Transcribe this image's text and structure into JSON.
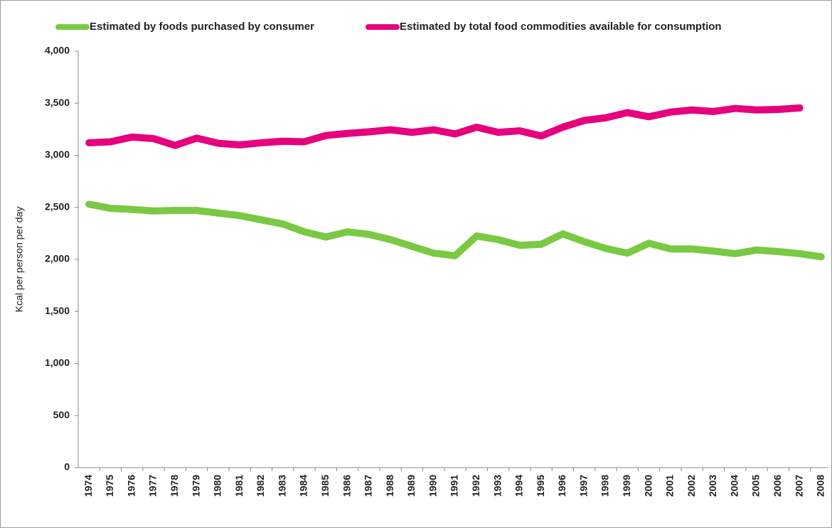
{
  "chart_data": {
    "type": "line",
    "y_label": "Kcal per person per day",
    "categories": [
      "1974",
      "1975",
      "1976",
      "1977",
      "1978",
      "1979",
      "1980",
      "1981",
      "1982",
      "1983",
      "1984",
      "1985",
      "1986",
      "1987",
      "1988",
      "1989",
      "1990",
      "1991",
      "1992",
      "1993",
      "1994",
      "1995",
      "1996",
      "1997",
      "1998",
      "1999",
      "2000",
      "2001",
      "2002",
      "2003",
      "2004",
      "2005",
      "2006",
      "2007",
      "2008"
    ],
    "series": [
      {
        "name": "Estimated by foods purchased by consumer",
        "color": "#7ac943",
        "values": [
          2530,
          2490,
          2480,
          2465,
          2470,
          2470,
          2445,
          2420,
          2380,
          2340,
          2265,
          2215,
          2265,
          2240,
          2190,
          2125,
          2060,
          2035,
          2225,
          2190,
          2135,
          2145,
          2245,
          2170,
          2105,
          2060,
          2155,
          2100,
          2100,
          2080,
          2055,
          2090,
          2075,
          2055,
          2025
        ]
      },
      {
        "name": "Estimated  by total food commodities available for consumption",
        "color": "#e6007e",
        "values": [
          3120,
          3130,
          3175,
          3160,
          3095,
          3165,
          3115,
          3100,
          3120,
          3135,
          3130,
          3190,
          3210,
          3225,
          3245,
          3220,
          3245,
          3205,
          3270,
          3220,
          3235,
          3185,
          3270,
          3335,
          3360,
          3410,
          3370,
          3415,
          3435,
          3420,
          3450,
          3435,
          3440,
          3455,
          null
        ]
      }
    ],
    "ylim": [
      0,
      4000
    ],
    "yticks": [
      0,
      500,
      {
        "value": 1000,
        "label": "1,000"
      },
      {
        "value": 1500,
        "label": "1,500"
      },
      {
        "value": 2000,
        "label": "2,000"
      },
      {
        "value": 2500,
        "label": "2,500"
      },
      {
        "value": 3000,
        "label": "3,000"
      },
      {
        "value": 3500,
        "label": "3,500"
      },
      {
        "value": 4000,
        "label": "4,000"
      }
    ],
    "grid": false,
    "legend": "top"
  }
}
